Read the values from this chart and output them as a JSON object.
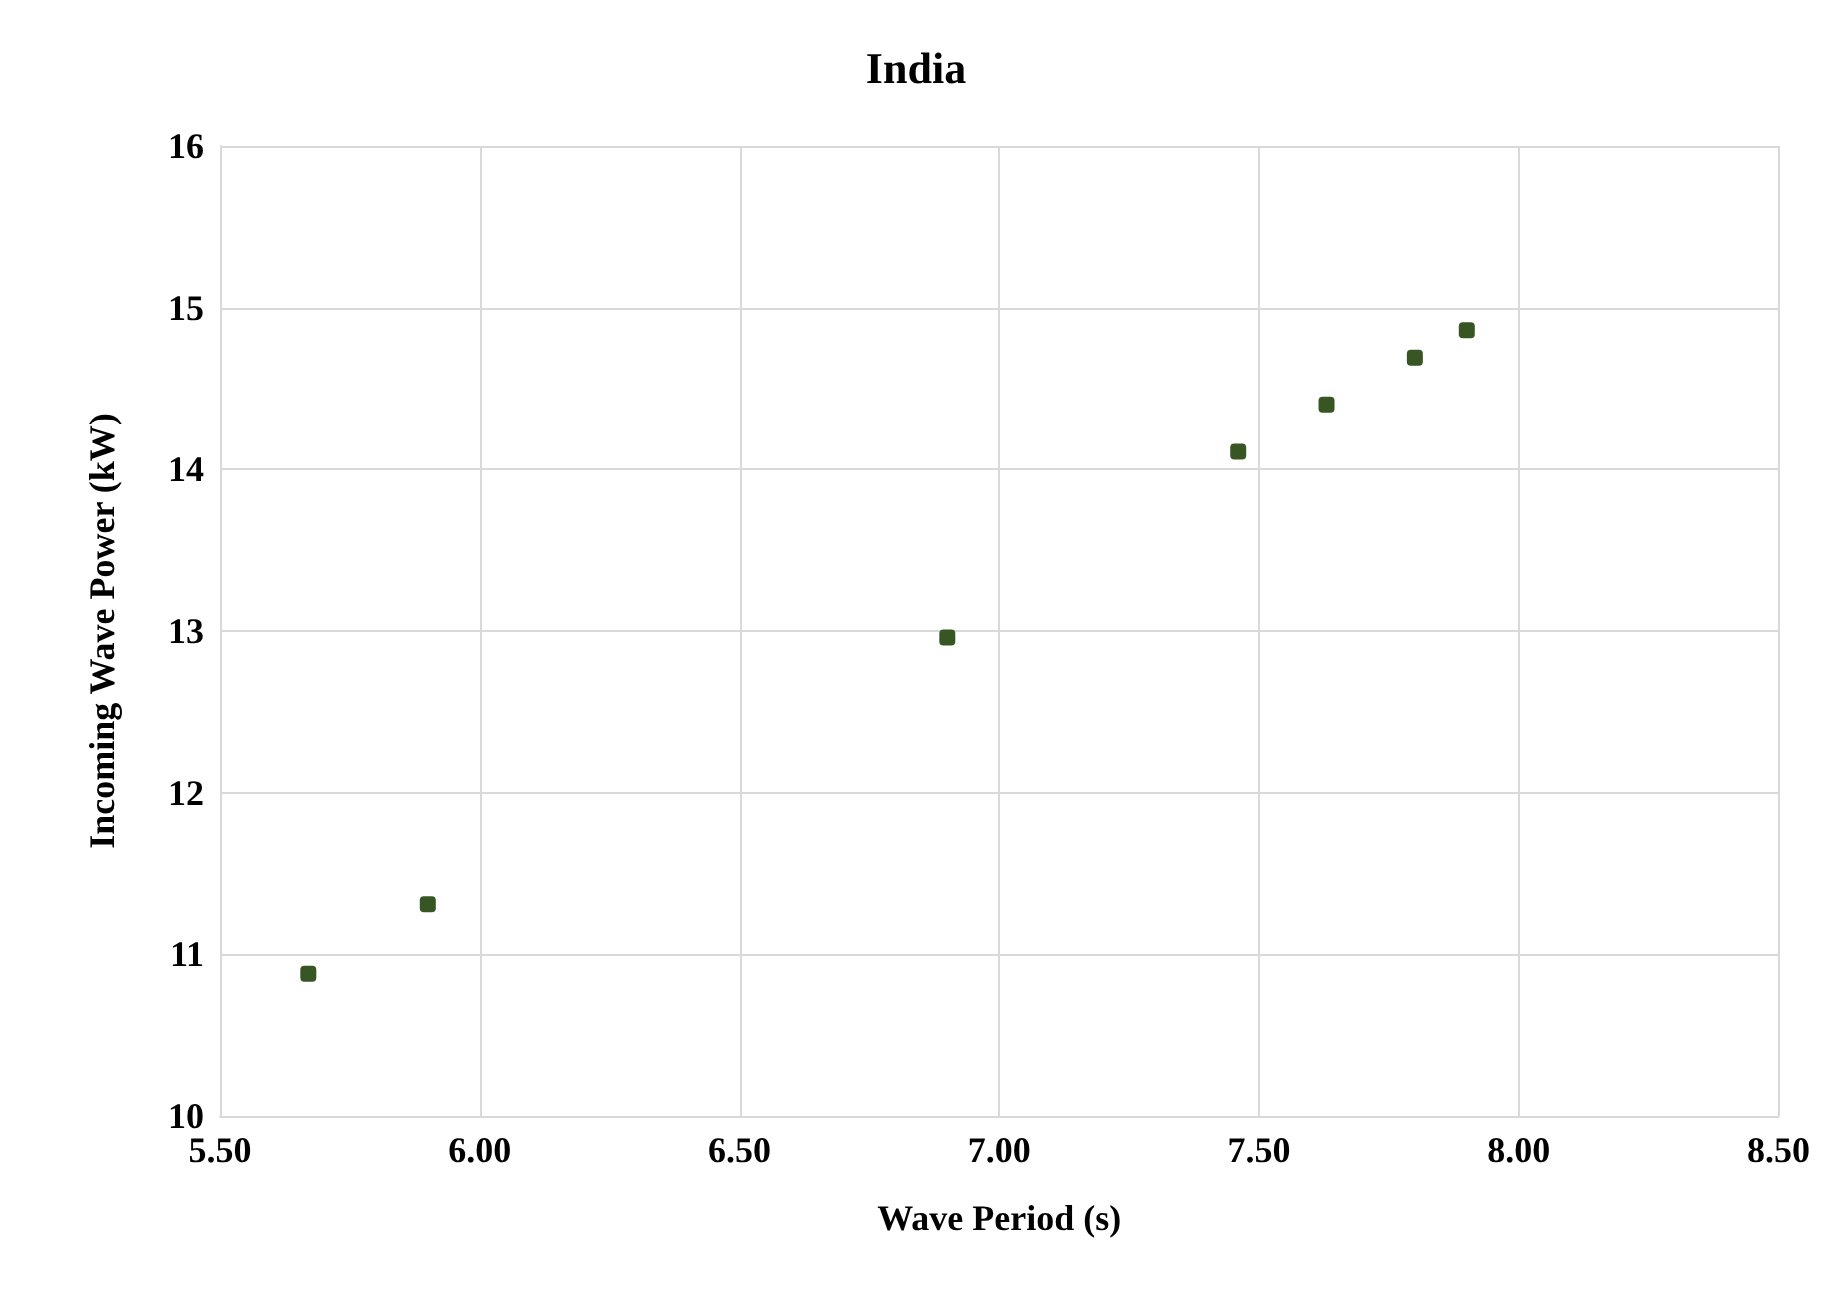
{
  "chart_data": {
    "type": "scatter",
    "title": "India",
    "xlabel": "Wave Period (s)",
    "ylabel": "Incoming Wave Power (kW)",
    "x": [
      5.67,
      5.9,
      6.9,
      7.46,
      7.63,
      7.8,
      7.9
    ],
    "series": [
      {
        "color": "#375623",
        "values": [
          10.88,
          11.31,
          12.96,
          14.11,
          14.4,
          14.69,
          14.86
        ]
      }
    ],
    "xlim": [
      5.5,
      8.5
    ],
    "xticks": [
      {
        "value": 5.5,
        "label": "5.50"
      },
      {
        "value": 6,
        "label": "6.00"
      },
      {
        "value": 6.5,
        "label": "6.50"
      },
      {
        "value": 7,
        "label": "7.00"
      },
      {
        "value": 7.5,
        "label": "7.50"
      },
      {
        "value": 8,
        "label": "8.00"
      },
      {
        "value": 8.5,
        "label": "8.50"
      }
    ],
    "ylim": [
      10,
      16
    ],
    "yticks": [
      10,
      11,
      12,
      13,
      14,
      15,
      16
    ],
    "grid": true,
    "marker": "square"
  }
}
